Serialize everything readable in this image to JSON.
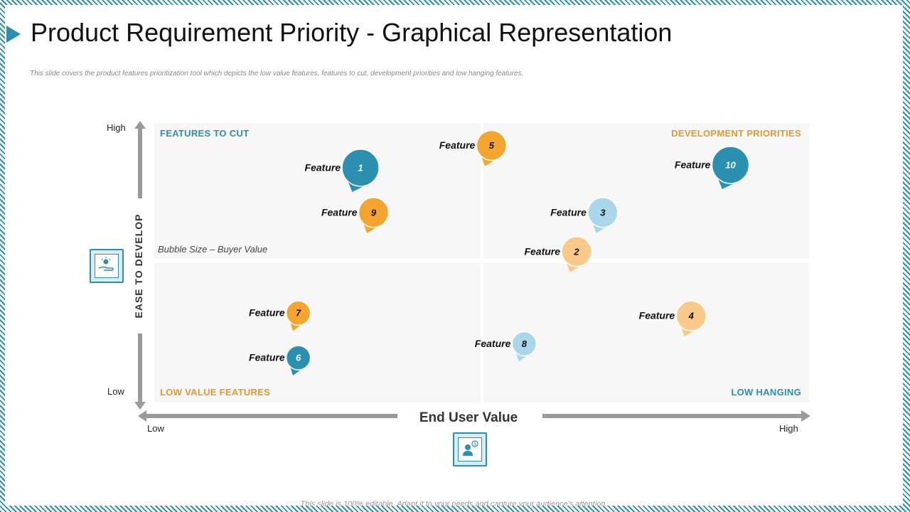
{
  "slide": {
    "title": "Product Requirement Priority - Graphical Representation",
    "subtitle": "This slide covers the product features prioritization tool which depicts the low value features, features to cut, development priorities and low hanging features.",
    "footer": "This slide is 100% editable. Adapt it to your needs and capture your audience's attention."
  },
  "colors": {
    "accent": "#2b8fb0",
    "orange": "#f4a52f",
    "light_orange": "#f9c98a",
    "dark_blue": "#2b8fb0",
    "light_blue": "#a9d6e8"
  },
  "icons": {
    "y_axis_icon": "hand-with-lightbulb-icon",
    "x_axis_icon": "user-with-dollar-icon"
  },
  "chart_data": {
    "type": "scatter",
    "title": "",
    "xlabel": "End User Value",
    "ylabel": "EASE TO DEVELOP",
    "x_ticks": [
      "Low",
      "High"
    ],
    "y_ticks": [
      "Low",
      "High"
    ],
    "xlim": [
      0,
      100
    ],
    "ylim": [
      0,
      100
    ],
    "size_legend": "Bubble Size – Buyer Value",
    "quadrants": {
      "top_left": "FEATURES  TO CUT",
      "top_right": "DEVELOPMENT  PRIORITIES",
      "bottom_left": "LOW VALUE FEATURES",
      "bottom_right": "LOW HANGING"
    },
    "points": [
      {
        "label": "Feature",
        "id": "1",
        "x": 31.5,
        "y": 84,
        "size": 3,
        "color": "dark_blue"
      },
      {
        "label": "Feature",
        "id": "2",
        "x": 64.5,
        "y": 54,
        "size": 2,
        "color": "light_orange"
      },
      {
        "label": "Feature",
        "id": "3",
        "x": 68.5,
        "y": 68,
        "size": 2,
        "color": "light_blue"
      },
      {
        "label": "Feature",
        "id": "4",
        "x": 82,
        "y": 31,
        "size": 2,
        "color": "light_orange"
      },
      {
        "label": "Feature",
        "id": "5",
        "x": 51.5,
        "y": 92,
        "size": 2,
        "color": "orange"
      },
      {
        "label": "Feature",
        "id": "6",
        "x": 22,
        "y": 16,
        "size": 1,
        "color": "dark_blue"
      },
      {
        "label": "Feature",
        "id": "7",
        "x": 22,
        "y": 32,
        "size": 1,
        "color": "orange"
      },
      {
        "label": "Feature",
        "id": "8",
        "x": 56.5,
        "y": 21,
        "size": 1,
        "color": "light_blue"
      },
      {
        "label": "Feature",
        "id": "9",
        "x": 33.5,
        "y": 68,
        "size": 2,
        "color": "orange"
      },
      {
        "label": "Feature",
        "id": "10",
        "x": 88,
        "y": 85,
        "size": 3,
        "color": "dark_blue"
      }
    ]
  }
}
